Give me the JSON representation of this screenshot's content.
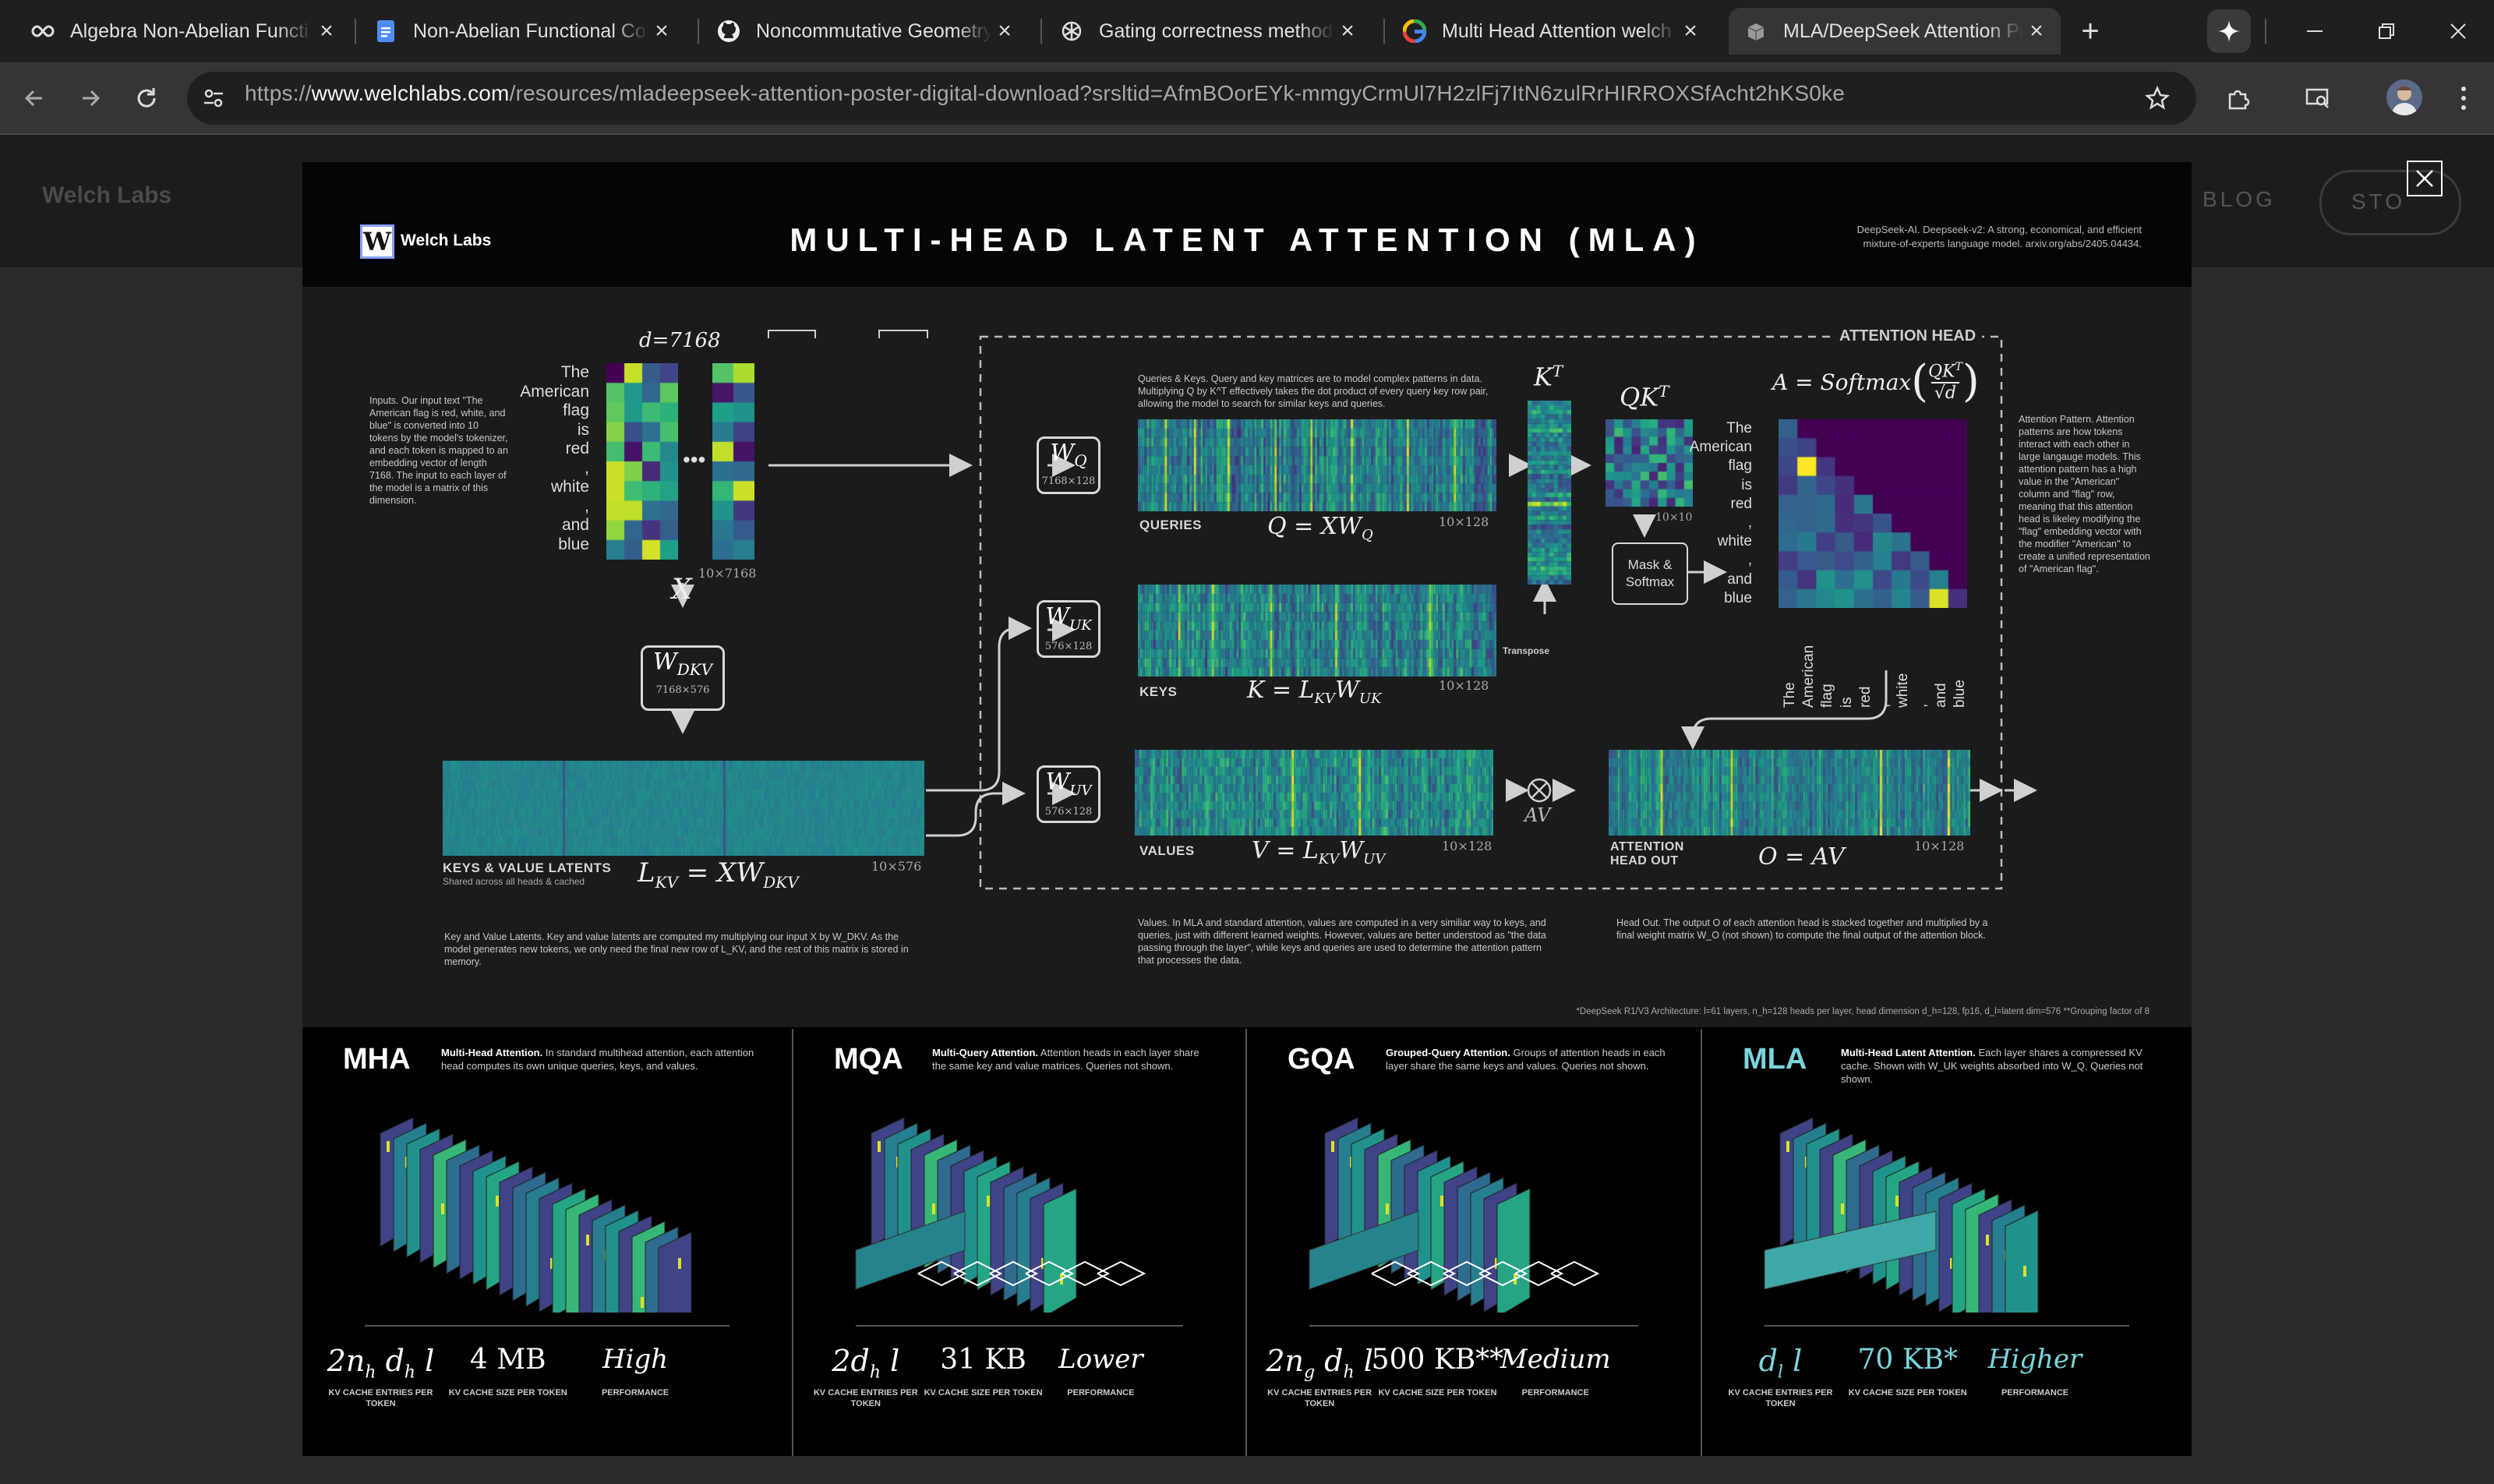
{
  "browser": {
    "tabs": [
      {
        "label": "Algebra Non-Abelian Functi",
        "icon": "infinity-icon"
      },
      {
        "label": "Non-Abelian Functional Cor",
        "icon": "docs-icon"
      },
      {
        "label": "Noncommutative Geometry",
        "icon": "github-icon"
      },
      {
        "label": "Gating correctness methodo",
        "icon": "openai-icon"
      },
      {
        "label": "Multi Head Attention welch",
        "icon": "google-icon"
      },
      {
        "label": "MLA/DeepSeek Attention Po",
        "icon": "page-icon"
      }
    ],
    "active_tab": 5,
    "url_prefix": "https://",
    "url_host": "www.welchlabs.com",
    "url_path": "/resources/mladeepseek-attention-poster-digital-download?srsltid=AfmBOorEYk-mmgyCrmUl7H2zlFj7ItN6zulRrHIRROXSfAcht2hKS0ke"
  },
  "site": {
    "logo": "Welch Labs",
    "nav_blog": "BLOG",
    "nav_store": "STO"
  },
  "poster": {
    "brand": "Welch Labs",
    "brand_letter": "W",
    "title": "MULTI-HEAD LATENT ATTENTION (MLA)",
    "citation_line1": "DeepSeek-AI. Deepseek-v2: A strong, economical, and efficient",
    "citation_line2": "mixture-of-experts language model. arxiv.org/abs/2405.04434.",
    "inputs_note": "Inputs. Our input text \"The American flag is red, white, and blue\" is converted into 10 tokens by the model's tokenizer, and each token is mapped to an embedding vector of length 7168. The input to each layer of the model is a matrix of this dimension.",
    "tokens": [
      "The",
      "American",
      "flag",
      "is",
      "red",
      ",",
      "white",
      ",",
      "and",
      "blue"
    ],
    "d_label": "d=7168",
    "x_dim": "10×7168",
    "x_symbol": "X",
    "wdkv": {
      "sym": "W",
      "sub": "DKV",
      "dim": "7168×576"
    },
    "wq": {
      "sym": "W",
      "sub": "Q",
      "dim": "7168×128"
    },
    "wuk": {
      "sym": "W",
      "sub": "UK",
      "dim": "576×128"
    },
    "wuv": {
      "sym": "W",
      "sub": "UV",
      "dim": "576×128"
    },
    "latents_label": "KEYS & VALUE LATENTS",
    "latents_sub": "Shared across all heads & cached",
    "latents_eq": "L_KV = XW_DKV",
    "latents_dim": "10×576",
    "latents_note": "Key and Value Latents. Key and value latents are computed my multiplying our input X by W_DKV. As the model generates new tokens, we only need the final new row of L_KV, and the rest of this matrix is stored in memory.",
    "queries_label": "QUERIES",
    "queries_eq": "Q = XW_Q",
    "queries_dim": "10×128",
    "qk_note": "Queries & Keys. Query and key matrices are to model complex patterns in data. Multiplying Q by K^T effectively takes the dot product of every query key row pair, allowing the model to search for similar keys and queries.",
    "keys_label": "KEYS",
    "keys_eq": "K = L_KV W_UK",
    "keys_dim": "10×128",
    "transpose_label": "Transpose",
    "kt_label": "K^T",
    "qkt_label": "QK^T",
    "qkt_dim": "10×10",
    "mask_label_1": "Mask &",
    "mask_label_2": "Softmax",
    "attention_eq": "A = Softmax(QK^T / √d)",
    "attention_head_label": "ATTENTION HEAD",
    "pattern_note": "Attention Pattern. Attention patterns are how tokens interact with each other in large langauge models. This attention pattern has a high value in the \"American\" column and \"flag\" row, meaning that this attention head is likeley modifying the \"flag\" embedding vector with the modifier \"American\" to create a unified representation of \"American flag\".",
    "values_label": "VALUES",
    "values_eq": "V = L_KV W_UV",
    "values_dim": "10×128",
    "av_label": "AV",
    "out_label_1": "ATTENTION",
    "out_label_2": "HEAD OUT",
    "out_eq": "O = AV",
    "out_dim": "10×128",
    "values_note": "Values. In MLA and standard attention, values are computed in a very similiar way to keys, and queries, just with different learned weights. However, values are better understood as \"the data passing through the layer\", while keys and queries are used to determine the attention pattern that processes the data.",
    "headout_note": "Head Out. The output O of each attention head is stacked together and multiplied by a final weight matrix W_O (not shown) to compute the final output of the attention block.",
    "footnote": "*DeepSeek R1/V3 Architecture: l=61 layers, n_h=128 heads per layer, head dimension d_h=128, fp16, d_l=latent dim=576   **Grouping factor of 8"
  },
  "panels": [
    {
      "abbr": "MHA",
      "name": "Multi-Head Attention.",
      "desc": "In standard multihead attention, each attention head computes its own unique queries, keys, and values.",
      "entries": "2n_h d_h l",
      "size": "4 MB",
      "perf": "High",
      "highlight": false
    },
    {
      "abbr": "MQA",
      "name": "Multi-Query Attention.",
      "desc": "Attention heads in each layer share the same key and value matrices. Queries not shown.",
      "entries": "2d_h l",
      "size": "31 KB",
      "perf": "Lower",
      "highlight": false
    },
    {
      "abbr": "GQA",
      "name": "Grouped-Query Attention.",
      "desc": "Groups of attention heads in each layer share the same keys and values. Queries not shown.",
      "entries": "2n_g d_h l",
      "size": "500 KB**",
      "perf": "Medium",
      "highlight": false
    },
    {
      "abbr": "MLA",
      "name": "Multi-Head Latent Attention.",
      "desc": "Each layer shares a compressed KV cache. Shown with W_UK weights absorbed into W_Q. Queries not shown.",
      "entries": "d_l l",
      "size": "70 KB*",
      "perf": "Higher",
      "highlight": true
    }
  ],
  "metric_captions": {
    "entries": "KV CACHE ENTRIES PER TOKEN",
    "size": "KV CACHE SIZE PER TOKEN",
    "perf": "PERFORMANCE"
  },
  "colors": {
    "accent_teal": "#7ad6dd",
    "viridis_dark": "#440154",
    "viridis_yellow": "#fde725"
  }
}
